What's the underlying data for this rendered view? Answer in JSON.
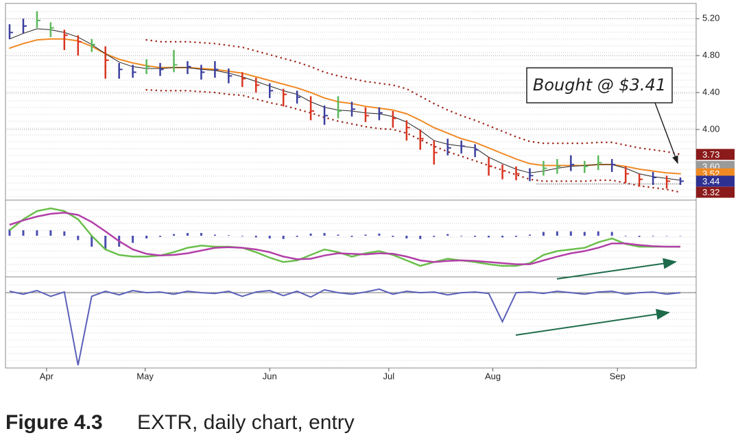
{
  "chart_data": [
    {
      "type": "ohlc",
      "high": [
        5.14,
        5.2,
        5.28,
        5.16,
        5.08,
        5.02,
        4.98,
        4.9,
        4.72,
        4.7,
        4.76,
        4.72,
        4.86,
        4.74,
        4.7,
        4.74,
        4.66,
        4.62,
        4.56,
        4.5,
        4.44,
        4.42,
        4.36,
        4.26,
        4.36,
        4.3,
        4.24,
        4.24,
        4.2,
        4.1,
        4.0,
        3.88,
        3.9,
        3.88,
        3.84,
        3.7,
        3.62,
        3.6,
        3.58,
        3.66,
        3.68,
        3.72,
        3.66,
        3.72,
        3.68,
        3.6,
        3.52,
        3.54,
        3.5,
        3.48
      ],
      "low": [
        4.98,
        5.04,
        5.1,
        5.0,
        4.86,
        4.8,
        4.84,
        4.55,
        4.55,
        4.56,
        4.6,
        4.58,
        4.62,
        4.6,
        4.54,
        4.56,
        4.5,
        4.46,
        4.4,
        4.34,
        4.25,
        4.28,
        4.1,
        4.05,
        4.12,
        4.14,
        4.08,
        4.1,
        4.02,
        3.88,
        3.78,
        3.62,
        3.72,
        3.74,
        3.7,
        3.5,
        3.46,
        3.45,
        3.44,
        3.5,
        3.52,
        3.55,
        3.53,
        3.56,
        3.54,
        3.42,
        3.38,
        3.4,
        3.36,
        3.4
      ],
      "close": [
        5.05,
        5.12,
        5.18,
        5.1,
        5.02,
        4.95,
        4.92,
        4.75,
        4.65,
        4.62,
        4.68,
        4.65,
        4.7,
        4.68,
        4.62,
        4.65,
        4.58,
        4.55,
        4.48,
        4.42,
        4.38,
        4.35,
        4.2,
        4.15,
        4.2,
        4.22,
        4.15,
        4.18,
        4.12,
        4.02,
        3.9,
        3.75,
        3.8,
        3.82,
        3.78,
        3.6,
        3.55,
        3.52,
        3.5,
        3.58,
        3.6,
        3.62,
        3.6,
        3.64,
        3.62,
        3.52,
        3.46,
        3.48,
        3.44,
        3.44
      ],
      "bar_colors": [
        "#3b3f9e",
        "#3b3f9e",
        "#5cb85c",
        "#5cb85c",
        "#d9341f",
        "#d9341f",
        "#5cb85c",
        "#d9341f",
        "#3b3f9e",
        "#3b3f9e",
        "#5cb85c",
        "#3b3f9e",
        "#5cb85c",
        "#3b3f9e",
        "#3b3f9e",
        "#3b3f9e",
        "#3b3f9e",
        "#d9341f",
        "#d9341f",
        "#3b3f9e",
        "#d9341f",
        "#3b3f9e",
        "#d9341f",
        "#3b3f9e",
        "#5cb85c",
        "#3b3f9e",
        "#d9341f",
        "#3b3f9e",
        "#d9341f",
        "#d9341f",
        "#d9341f",
        "#d9341f",
        "#3b3f9e",
        "#3b3f9e",
        "#3b3f9e",
        "#d9341f",
        "#d9341f",
        "#d9341f",
        "#3b3f9e",
        "#5cb85c",
        "#5cb85c",
        "#3b3f9e",
        "#5cb85c",
        "#5cb85c",
        "#3b3f9e",
        "#d9341f",
        "#d9341f",
        "#3b3f9e",
        "#d9341f",
        "#3b3f9e"
      ],
      "series": [
        {
          "color": "#f08a24",
          "width": 2,
          "dotted": false,
          "values": [
            4.88,
            4.93,
            4.97,
            4.98,
            4.98,
            4.96,
            4.9,
            4.82,
            4.76,
            4.72,
            4.69,
            4.67,
            4.67,
            4.67,
            4.66,
            4.65,
            4.63,
            4.61,
            4.57,
            4.53,
            4.49,
            4.45,
            4.4,
            4.34,
            4.3,
            4.28,
            4.25,
            4.23,
            4.21,
            4.17,
            4.1,
            4.02,
            3.96,
            3.9,
            3.86,
            3.8,
            3.74,
            3.68,
            3.63,
            3.61,
            3.61,
            3.61,
            3.61,
            3.62,
            3.62,
            3.6,
            3.57,
            3.55,
            3.53,
            3.52
          ]
        },
        {
          "color": "#222222",
          "width": 1,
          "dotted": false,
          "values": [
            4.98,
            5.04,
            5.09,
            5.08,
            5.05,
            5.0,
            4.92,
            4.82,
            4.73,
            4.68,
            4.66,
            4.66,
            4.67,
            4.67,
            4.65,
            4.64,
            4.61,
            4.57,
            4.52,
            4.47,
            4.42,
            4.38,
            4.3,
            4.24,
            4.21,
            4.2,
            4.18,
            4.17,
            4.14,
            4.08,
            3.99,
            3.88,
            3.84,
            3.82,
            3.8,
            3.7,
            3.63,
            3.57,
            3.53,
            3.55,
            3.58,
            3.6,
            3.61,
            3.62,
            3.62,
            3.58,
            3.52,
            3.49,
            3.47,
            3.45
          ]
        },
        {
          "color": "#a0281c",
          "width": 2.5,
          "dotted": true,
          "values": [
            null,
            null,
            null,
            null,
            null,
            null,
            null,
            null,
            null,
            null,
            4.97,
            4.95,
            4.95,
            4.95,
            4.94,
            4.93,
            4.91,
            4.89,
            4.85,
            4.81,
            4.77,
            4.73,
            4.68,
            4.62,
            4.58,
            4.55,
            4.52,
            4.5,
            4.48,
            4.44,
            4.36,
            4.28,
            4.21,
            4.15,
            4.1,
            4.04,
            3.98,
            3.92,
            3.87,
            3.85,
            3.85,
            3.85,
            3.85,
            3.86,
            3.86,
            3.83,
            3.8,
            3.78,
            3.76,
            3.73
          ]
        },
        {
          "color": "#a0281c",
          "width": 2.5,
          "dotted": true,
          "values": [
            null,
            null,
            null,
            null,
            null,
            null,
            null,
            null,
            null,
            null,
            4.43,
            4.42,
            4.42,
            4.42,
            4.41,
            4.4,
            4.38,
            4.37,
            4.33,
            4.29,
            4.26,
            4.22,
            4.18,
            4.13,
            4.09,
            4.06,
            4.03,
            4.01,
            4.0,
            3.96,
            3.89,
            3.82,
            3.76,
            3.71,
            3.66,
            3.61,
            3.56,
            3.51,
            3.46,
            3.44,
            3.44,
            3.44,
            3.44,
            3.45,
            3.45,
            3.42,
            3.39,
            3.37,
            3.35,
            3.32
          ]
        }
      ],
      "xlim": [
        -0.3,
        49.4
      ],
      "ylim": [
        3.25,
        5.35
      ],
      "yticks": [
        {
          "value": 5.2,
          "label": "5.20"
        },
        {
          "value": 4.8,
          "label": "4.80"
        },
        {
          "value": 4.4,
          "label": "4.40"
        },
        {
          "value": 4.0,
          "label": "4.00"
        }
      ],
      "grid": true,
      "price_badges": [
        {
          "value": 3.6,
          "label": "3.60",
          "color": "#9a9a9a"
        },
        {
          "value": 3.73,
          "label": "3.73",
          "color": "#8b1a1a"
        },
        {
          "value": 3.52,
          "label": "3.52",
          "color": "#f08a24"
        },
        {
          "value": 3.44,
          "label": "3.44",
          "color": "#2e3192"
        },
        {
          "value": 3.32,
          "label": "3.32",
          "color": "#8b1a1a"
        }
      ],
      "entry": {
        "label": "Bought @ $3.41",
        "value": 3.41
      }
    },
    {
      "type": "macd",
      "series": [
        {
          "color": "#6abf4b",
          "values": [
            0.1,
            0.3,
            0.45,
            0.5,
            0.45,
            0.3,
            0.0,
            -0.25,
            -0.35,
            -0.38,
            -0.38,
            -0.36,
            -0.3,
            -0.22,
            -0.18,
            -0.2,
            -0.2,
            -0.22,
            -0.3,
            -0.4,
            -0.48,
            -0.45,
            -0.35,
            -0.25,
            -0.3,
            -0.38,
            -0.32,
            -0.28,
            -0.35,
            -0.45,
            -0.55,
            -0.48,
            -0.42,
            -0.45,
            -0.48,
            -0.52,
            -0.55,
            -0.55,
            -0.5,
            -0.35,
            -0.28,
            -0.25,
            -0.22,
            -0.12,
            -0.05,
            -0.15,
            -0.2,
            -0.2,
            -0.2,
            -0.2
          ]
        },
        {
          "color": "#b23fa8",
          "values": [
            0.2,
            0.28,
            0.35,
            0.4,
            0.42,
            0.38,
            0.25,
            0.08,
            -0.1,
            -0.25,
            -0.33,
            -0.36,
            -0.35,
            -0.32,
            -0.27,
            -0.22,
            -0.21,
            -0.22,
            -0.25,
            -0.3,
            -0.38,
            -0.43,
            -0.42,
            -0.36,
            -0.32,
            -0.33,
            -0.34,
            -0.32,
            -0.33,
            -0.38,
            -0.45,
            -0.48,
            -0.46,
            -0.45,
            -0.46,
            -0.48,
            -0.5,
            -0.52,
            -0.52,
            -0.45,
            -0.38,
            -0.32,
            -0.28,
            -0.22,
            -0.14,
            -0.14,
            -0.17,
            -0.19,
            -0.2,
            -0.2
          ]
        }
      ],
      "histogram": {
        "color": "#4a4fb0",
        "values": [
          0.12,
          0.1,
          0.1,
          0.1,
          0.08,
          -0.08,
          -0.2,
          -0.25,
          -0.2,
          -0.13,
          -0.05,
          -0.02,
          0.03,
          0.05,
          0.05,
          0.02,
          0.01,
          -0.01,
          -0.03,
          -0.05,
          -0.06,
          -0.02,
          0.04,
          0.05,
          0.02,
          -0.02,
          0.02,
          0.04,
          -0.02,
          -0.05,
          -0.06,
          -0.02,
          0.03,
          -0.01,
          -0.02,
          -0.03,
          -0.03,
          -0.02,
          0.02,
          0.07,
          0.08,
          0.08,
          0.07,
          0.08,
          0.07,
          -0.01,
          -0.02,
          -0.01,
          0.0,
          0.0
        ]
      },
      "xlim": [
        -0.3,
        49.4
      ],
      "ylim": [
        -0.7,
        0.6
      ]
    },
    {
      "type": "line",
      "color": "#5a5fb8",
      "values": [
        0.02,
        -0.02,
        0.03,
        -0.05,
        0.01,
        -1.0,
        -0.05,
        0.02,
        -0.03,
        0.03,
        0.0,
        0.01,
        -0.02,
        0.02,
        0.0,
        -0.01,
        0.02,
        -0.05,
        0.01,
        0.03,
        -0.04,
        0.02,
        -0.06,
        0.04,
        0.0,
        -0.02,
        0.01,
        0.05,
        -0.02,
        0.02,
        0.0,
        0.01,
        -0.03,
        0.0,
        0.01,
        -0.01,
        -0.4,
        0.0,
        0.01,
        -0.01,
        0.02,
        0.0,
        -0.02,
        0.01,
        0.02,
        -0.02,
        0.0,
        0.01,
        -0.02,
        0.0
      ],
      "xlim": [
        -0.3,
        49.4
      ],
      "ylim": [
        -1.02,
        0.2
      ],
      "xticks": [
        {
          "value": 2.7,
          "label": "Apr"
        },
        {
          "value": 9.9,
          "label": "May"
        },
        {
          "value": 19.0,
          "label": "Jun"
        },
        {
          "value": 27.7,
          "label": "Jul"
        },
        {
          "value": 35.3,
          "label": "Aug"
        },
        {
          "value": 44.4,
          "label": "Sep"
        }
      ]
    }
  ],
  "caption": {
    "figure": "Figure 4.3",
    "text": "EXTR, daily chart, entry"
  }
}
